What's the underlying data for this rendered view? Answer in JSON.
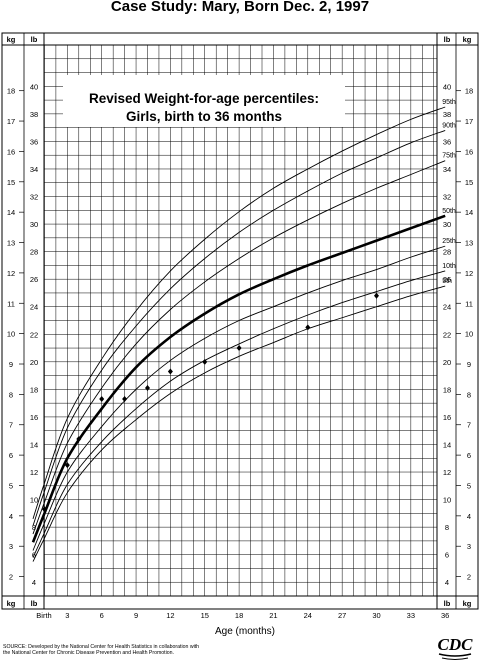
{
  "title": "Case Study: Mary, Born Dec. 2, 1997",
  "source_lines": [
    "SOURCE: Developed by the National Center for Health Statistics in collaboration with",
    "the National Center for Chronic Disease Prevention and Health Promotion."
  ],
  "logo_text": "CDC",
  "chart_data": {
    "type": "line",
    "title_lines": [
      "Revised Weight-for-age percentiles:",
      "Girls, birth to 36 months"
    ],
    "xlabel": "Age (months)",
    "xlim": [
      0,
      36
    ],
    "x_ticks": [
      {
        "value": 0,
        "label": "Birth"
      },
      {
        "value": 3,
        "label": "3"
      },
      {
        "value": 6,
        "label": "6"
      },
      {
        "value": 9,
        "label": "9"
      },
      {
        "value": 12,
        "label": "12"
      },
      {
        "value": 15,
        "label": "15"
      },
      {
        "value": 18,
        "label": "18"
      },
      {
        "value": 21,
        "label": "21"
      },
      {
        "value": 24,
        "label": "24"
      },
      {
        "value": 27,
        "label": "27"
      },
      {
        "value": 30,
        "label": "30"
      },
      {
        "value": 33,
        "label": "33"
      },
      {
        "value": 36,
        "label": "36"
      }
    ],
    "kg_unit_label": "kg",
    "lb_unit_label": "lb",
    "kg_ticks": [
      2,
      3,
      4,
      5,
      6,
      7,
      8,
      9,
      10,
      11,
      12,
      13,
      14,
      15,
      16,
      17,
      18
    ],
    "lb_ticks": [
      4,
      6,
      8,
      10,
      12,
      14,
      16,
      18,
      20,
      22,
      24,
      26,
      28,
      30,
      32,
      34,
      36,
      38,
      40
    ],
    "ylim_lb": [
      3,
      43
    ],
    "x": [
      0,
      1,
      3,
      6,
      9,
      12,
      15,
      18,
      21,
      24,
      27,
      30,
      33,
      36
    ],
    "series": [
      {
        "name": "95th",
        "values": [
          8.6,
          11.2,
          15.9,
          20.2,
          23.7,
          26.6,
          28.9,
          30.9,
          32.6,
          34.0,
          35.3,
          36.5,
          37.6,
          38.5
        ]
      },
      {
        "name": "90th",
        "values": [
          8.1,
          10.6,
          15.2,
          19.4,
          22.6,
          25.3,
          27.5,
          29.4,
          31.0,
          32.4,
          33.7,
          34.8,
          35.9,
          36.8
        ]
      },
      {
        "name": "75th",
        "values": [
          7.5,
          9.8,
          14.1,
          18.1,
          21.3,
          23.8,
          25.8,
          27.5,
          29.0,
          30.3,
          31.5,
          32.6,
          33.6,
          34.6
        ]
      },
      {
        "name": "50th",
        "values": [
          6.9,
          9.0,
          13.0,
          16.6,
          19.6,
          21.8,
          23.5,
          24.9,
          26.0,
          27.0,
          27.9,
          28.8,
          29.7,
          30.6
        ]
      },
      {
        "name": "25th",
        "values": [
          6.3,
          8.3,
          12.0,
          15.3,
          18.0,
          20.1,
          21.7,
          23.0,
          24.0,
          25.0,
          25.9,
          26.7,
          27.6,
          28.4
        ]
      },
      {
        "name": "10th",
        "values": [
          5.8,
          7.6,
          11.1,
          14.2,
          16.6,
          18.6,
          20.1,
          21.3,
          22.4,
          23.4,
          24.3,
          25.1,
          25.9,
          26.6
        ]
      },
      {
        "name": "5th",
        "values": [
          5.5,
          7.2,
          10.5,
          13.6,
          15.8,
          17.7,
          19.2,
          20.4,
          21.4,
          22.4,
          23.2,
          24.0,
          24.8,
          25.5
        ]
      }
    ],
    "bold_series": "50th",
    "case_points": [
      {
        "x": 1,
        "y": 9.3
      },
      {
        "x": 3,
        "y": 12.5
      },
      {
        "x": 4,
        "y": 14.4
      },
      {
        "x": 6,
        "y": 17.3
      },
      {
        "x": 8,
        "y": 17.3
      },
      {
        "x": 10,
        "y": 18.1
      },
      {
        "x": 12,
        "y": 19.3
      },
      {
        "x": 15,
        "y": 20.0
      },
      {
        "x": 18,
        "y": 21.0
      },
      {
        "x": 24,
        "y": 22.5
      },
      {
        "x": 30,
        "y": 24.8
      }
    ],
    "grid": true
  }
}
